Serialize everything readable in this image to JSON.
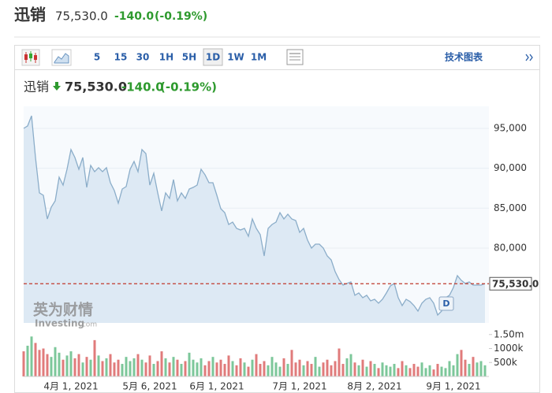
{
  "header": {
    "name": "迅销",
    "price": "75,530.0",
    "change": "-140.0",
    "change_pct": "(-0.19%)"
  },
  "toolbar": {
    "intervals": [
      "5",
      "15",
      "30",
      "1H",
      "5H",
      "1D",
      "1W",
      "1M"
    ],
    "active_index": 5,
    "tech_chart": "技术图表"
  },
  "chart_header": {
    "name": "迅销",
    "price": "75,530.0",
    "change": "-140.0",
    "change_pct": "(-0.19%)"
  },
  "chart_data": [
    {
      "type": "line",
      "categories": [
        null,
        null,
        null,
        null,
        null,
        null,
        null,
        null,
        null,
        null,
        null,
        null,
        "4月 1, 2021",
        null,
        null,
        null,
        null,
        null,
        null,
        null,
        null,
        null,
        null,
        null,
        null,
        null,
        null,
        null,
        null,
        null,
        null,
        null,
        "5月 6, 2021",
        null,
        null,
        null,
        null,
        null,
        null,
        null,
        null,
        null,
        null,
        null,
        null,
        null,
        null,
        null,
        null,
        "6月 1, 2021",
        null,
        null,
        null,
        null,
        null,
        null,
        null,
        null,
        null,
        null,
        null,
        null,
        null,
        null,
        null,
        null,
        null,
        null,
        null,
        null,
        "7月 1, 2021",
        null,
        null,
        null,
        null,
        null,
        null,
        null,
        null,
        null,
        null,
        null,
        null,
        null,
        null,
        null,
        null,
        null,
        null,
        "8月 2, 2021",
        null,
        null,
        null,
        null,
        null,
        null,
        null,
        null,
        null,
        null,
        null,
        null,
        null,
        null,
        null,
        null,
        null,
        null,
        null,
        "9月 1, 2021",
        null,
        null,
        null,
        null,
        null,
        null,
        null,
        null
      ],
      "values": [
        95000,
        95300,
        96580,
        91350,
        86910,
        86610,
        83650,
        85130,
        85920,
        88880,
        87890,
        89870,
        92340,
        91350,
        89870,
        91350,
        87600,
        90360,
        89570,
        90070,
        89570,
        90070,
        88190,
        87200,
        85620,
        87400,
        87700,
        89870,
        90850,
        89570,
        92340,
        91840,
        87890,
        89370,
        86910,
        84640,
        86910,
        86220,
        88580,
        85920,
        86910,
        86220,
        87400,
        87600,
        87890,
        89870,
        89180,
        88190,
        88190,
        86610,
        84930,
        84440,
        82960,
        83250,
        82460,
        82270,
        82460,
        81480,
        83650,
        82460,
        81680,
        79010,
        82460,
        82960,
        83250,
        84440,
        83650,
        84240,
        83650,
        83450,
        81970,
        82460,
        80990,
        80000,
        80490,
        80490,
        80000,
        79010,
        78520,
        77040,
        76050,
        75360,
        75560,
        75750,
        74080,
        74370,
        73780,
        74080,
        73380,
        73580,
        73090,
        73580,
        74370,
        75260,
        75560,
        73780,
        72790,
        73580,
        73290,
        72790,
        72100,
        73090,
        73580,
        73780,
        73090,
        71610,
        72100,
        73780,
        74080,
        75060,
        76540,
        75950,
        75560,
        75750,
        75360,
        75360,
        75360,
        75530
      ],
      "color": "#8badc9",
      "fill": "#dde9f4",
      "ylim": [
        70620,
        97760
      ],
      "yticks": [
        {
          "value": 80000,
          "label": "80,000"
        },
        {
          "value": 85000,
          "label": "85,000"
        },
        {
          "value": 90000,
          "label": "90,000"
        },
        {
          "value": 95000,
          "label": "95,000"
        }
      ],
      "grid": true,
      "current": {
        "value": 75530,
        "label": "75,530.0",
        "color": "#c0392b"
      },
      "annotation": "D",
      "watermark": {
        "brand": "英为财情",
        "site": "Investing",
        "domain": ".com"
      }
    },
    {
      "type": "bar",
      "values": [
        900000,
        1100000,
        1430000,
        1200000,
        950000,
        1000000,
        800000,
        700000,
        1050000,
        850000,
        600000,
        750000,
        900000,
        650000,
        800000,
        500000,
        700000,
        600000,
        1300000,
        750000,
        550000,
        650000,
        800000,
        500000,
        600000,
        450000,
        700000,
        550000,
        650000,
        800000,
        600000,
        500000,
        750000,
        450000,
        550000,
        900000,
        650000,
        500000,
        700000,
        600000,
        450000,
        550000,
        850000,
        600000,
        500000,
        650000,
        400000,
        550000,
        700000,
        500000,
        600000,
        450000,
        750000,
        550000,
        400000,
        650000,
        500000,
        350000,
        600000,
        800000,
        450000,
        550000,
        400000,
        700000,
        500000,
        350000,
        650000,
        450000,
        950000,
        500000,
        600000,
        400000,
        550000,
        450000,
        700000,
        350000,
        500000,
        600000,
        400000,
        550000,
        1000000,
        450000,
        650000,
        800000,
        500000,
        400000,
        600000,
        350000,
        550000,
        450000,
        300000,
        500000,
        400000,
        350000,
        450000,
        300000,
        550000,
        400000,
        300000,
        450000,
        350000,
        500000,
        300000,
        400000,
        250000,
        450000,
        350000,
        300000,
        550000,
        400000,
        800000,
        950000,
        600000,
        450000,
        700000,
        500000,
        550000,
        400000
      ],
      "up_color": "#7cc79a",
      "down_color": "#e07b7b",
      "ylim": [
        0,
        1550000
      ],
      "yticks": [
        {
          "value": 500000,
          "label": "500k"
        },
        {
          "value": 1000000,
          "label": "1000k"
        },
        {
          "value": 1500000,
          "label": "1.50m"
        }
      ]
    }
  ]
}
